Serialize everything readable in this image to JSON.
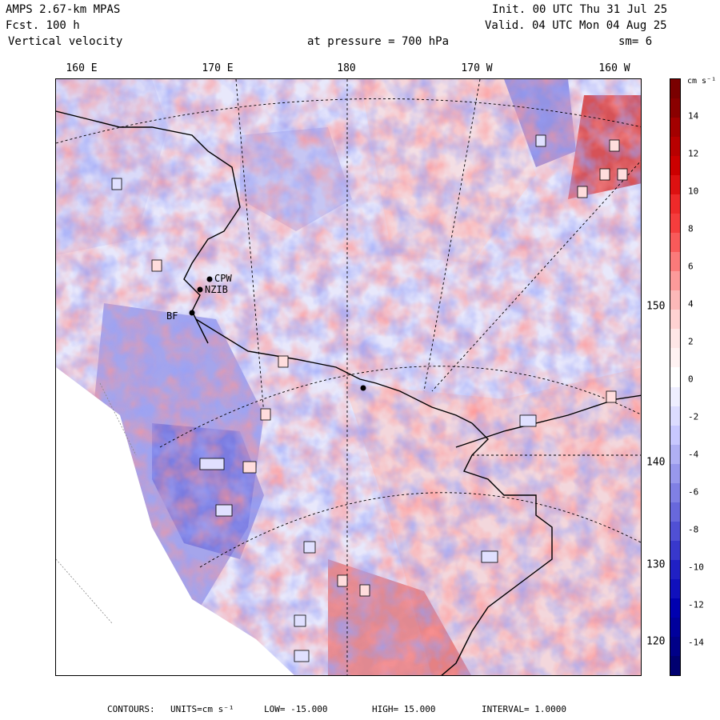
{
  "header": {
    "model": "AMPS 2.67-km MPAS",
    "forecast": "Fcst.  100 h",
    "field": "Vertical velocity",
    "pressure": "at pressure =  700 hPa",
    "init": "Init. 00 UTC Thu 31 Jul 25",
    "valid": "Valid. 04 UTC Mon 04 Aug 25",
    "smoothing": "sm= 6"
  },
  "map": {
    "lon_labels": [
      "160 E",
      "170 E",
      "180",
      "170 W",
      "160 W"
    ],
    "lat_labels": [
      "150 W",
      "140 W",
      "130 W",
      "120 W"
    ],
    "stations": [
      "CPW",
      "NZIB",
      "BF"
    ],
    "colors": {
      "coast": "#000000",
      "grid": "#000000",
      "neutral": "#f0f0ff"
    }
  },
  "colorbar": {
    "units": "cm s⁻¹",
    "tick_labels": [
      "14",
      "12",
      "10",
      "8",
      "6",
      "4",
      "2",
      "0",
      "-2",
      "-4",
      "-6",
      "-8",
      "-10",
      "-12",
      "-14"
    ],
    "colors": [
      "#7a0000",
      "#8a0000",
      "#a30000",
      "#b80000",
      "#cc0000",
      "#dd1111",
      "#ee2a2a",
      "#f53d3d",
      "#f95a5a",
      "#fb7a7a",
      "#fc9a9a",
      "#fdb8b8",
      "#fed2d2",
      "#fee6e6",
      "#fff2f2",
      "#ffffff",
      "#eeeeff",
      "#dcdcff",
      "#c8c8ff",
      "#b0b0f4",
      "#9898ec",
      "#8080e4",
      "#6868dc",
      "#5050d4",
      "#3838cc",
      "#2020c4",
      "#1010bc",
      "#0000b0",
      "#00009c",
      "#000088",
      "#000070"
    ]
  },
  "footer": {
    "contours": "CONTOURS:",
    "units": "UNITS=cm s⁻¹",
    "low": "LOW=  -15.000",
    "high": "HIGH=  15.000",
    "interval": "INTERVAL=   1.0000"
  }
}
